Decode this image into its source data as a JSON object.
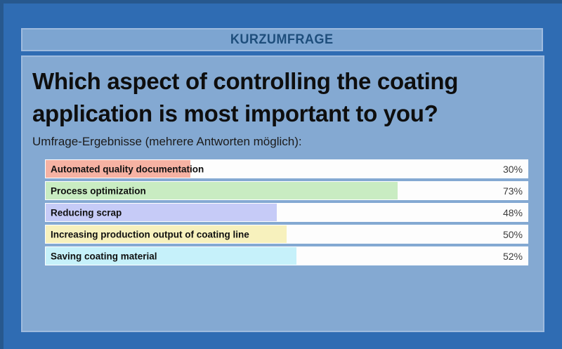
{
  "header": {
    "label": "KURZUMFRAGE"
  },
  "question": {
    "title": "Which aspect of controlling the coating application is most important to you?",
    "subtitle": "Umfrage-Ergebnisse (mehrere Antworten möglich):"
  },
  "chart_data": {
    "type": "bar",
    "orientation": "horizontal",
    "title": "Which aspect of controlling the coating application is most important to you?",
    "subtitle": "Umfrage-Ergebnisse (mehrere Antworten möglich):",
    "categories": [
      "Automated quality documentation",
      "Process optimization",
      "Reducing scrap",
      "Increasing production output of coating line",
      "Saving coating material"
    ],
    "values": [
      30,
      73,
      48,
      50,
      52
    ],
    "value_labels": [
      "30%",
      "73%",
      "48%",
      "50%",
      "52%"
    ],
    "bar_colors": [
      "#f6b2a3",
      "#c9ecc2",
      "#c6cbf7",
      "#f7f1bd",
      "#c6f1fa"
    ],
    "track_color": "#fdfdfd",
    "xlim": [
      0,
      100
    ],
    "grid": false,
    "legend": false,
    "multiple_answers_possible": true
  },
  "colors": {
    "background": "#2f6cb3",
    "edge_border": "#27588e",
    "panel": "#84a9d2",
    "panel_border": "#9fbbde",
    "header_text": "#1e4e7c",
    "title_text": "#0e0e0e",
    "percent_text": "#3d3d3d"
  }
}
